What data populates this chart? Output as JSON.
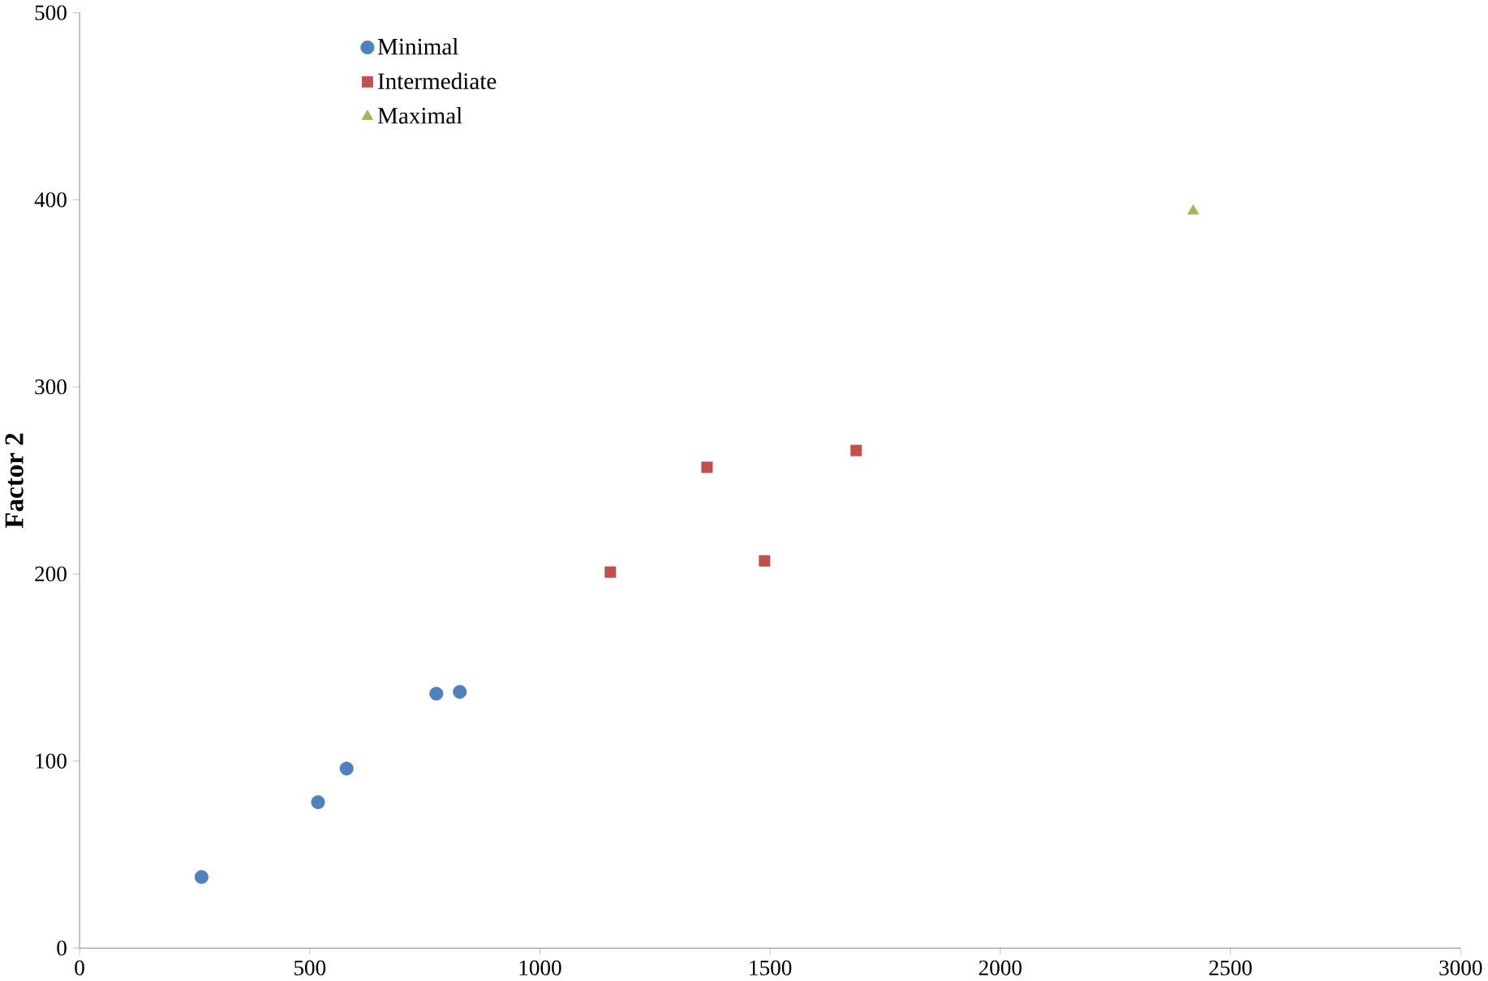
{
  "chart_data": {
    "type": "scatter",
    "ylabel": "Factor 2",
    "xlim": [
      0,
      3000
    ],
    "ylim": [
      0,
      500
    ],
    "xticks": [
      0,
      500,
      1000,
      1500,
      2000,
      2500,
      3000
    ],
    "yticks": [
      0,
      100,
      200,
      300,
      400,
      500
    ],
    "grid": false,
    "legend": "top left",
    "series": [
      {
        "name": "Minimal",
        "color": "#4f81bd",
        "marker": "circle",
        "x": [
          265,
          518,
          580,
          775,
          826
        ],
        "values": [
          38,
          78,
          96,
          136,
          137
        ]
      },
      {
        "name": "Intermediate",
        "color": "#c0504d",
        "marker": "square",
        "x": [
          1153,
          1363,
          1488,
          1687
        ],
        "values": [
          201,
          257,
          207,
          266
        ]
      },
      {
        "name": "Maximal",
        "color": "#9bbb59",
        "marker": "triangle",
        "x": [
          2419
        ],
        "values": [
          394
        ]
      }
    ]
  }
}
